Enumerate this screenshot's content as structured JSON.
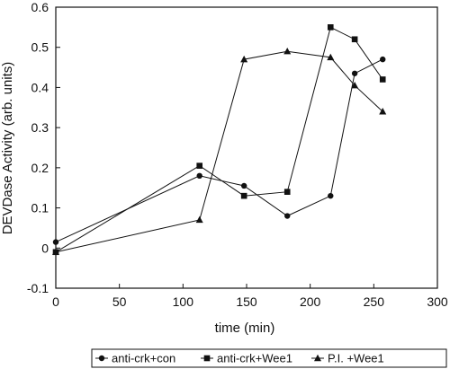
{
  "chart_data": {
    "type": "line",
    "xlabel": "time (min)",
    "ylabel": "DEVDase Activity (arb. units)",
    "xlim": [
      0,
      300
    ],
    "ylim": [
      -0.1,
      0.6
    ],
    "xticks": [
      "0",
      "50",
      "100",
      "150",
      "200",
      "250",
      "300"
    ],
    "yticks": [
      "-0.1",
      "0",
      "0.1",
      "0.2",
      "0.3",
      "0.4",
      "0.5",
      "0.6"
    ],
    "xtick_values": [
      0,
      50,
      100,
      150,
      200,
      250,
      300
    ],
    "ytick_values": [
      -0.1,
      0,
      0.1,
      0.2,
      0.3,
      0.4,
      0.5,
      0.6
    ],
    "grid": false,
    "legend_position": "bottom",
    "series": [
      {
        "name": "anti-crk+con",
        "marker": "circle",
        "x": [
          0,
          113,
          148,
          182,
          216,
          235,
          257
        ],
        "y": [
          0.015,
          0.18,
          0.155,
          0.08,
          0.13,
          0.435,
          0.47
        ]
      },
      {
        "name": "anti-crk+Wee1",
        "marker": "square",
        "x": [
          0,
          113,
          148,
          182,
          216,
          235,
          257
        ],
        "y": [
          -0.01,
          0.205,
          0.13,
          0.14,
          0.55,
          0.52,
          0.42
        ]
      },
      {
        "name": "P.I. +Wee1",
        "marker": "triangle",
        "x": [
          0,
          113,
          148,
          182,
          216,
          235,
          257
        ],
        "y": [
          -0.01,
          0.07,
          0.47,
          0.49,
          0.475,
          0.405,
          0.34
        ]
      }
    ]
  }
}
